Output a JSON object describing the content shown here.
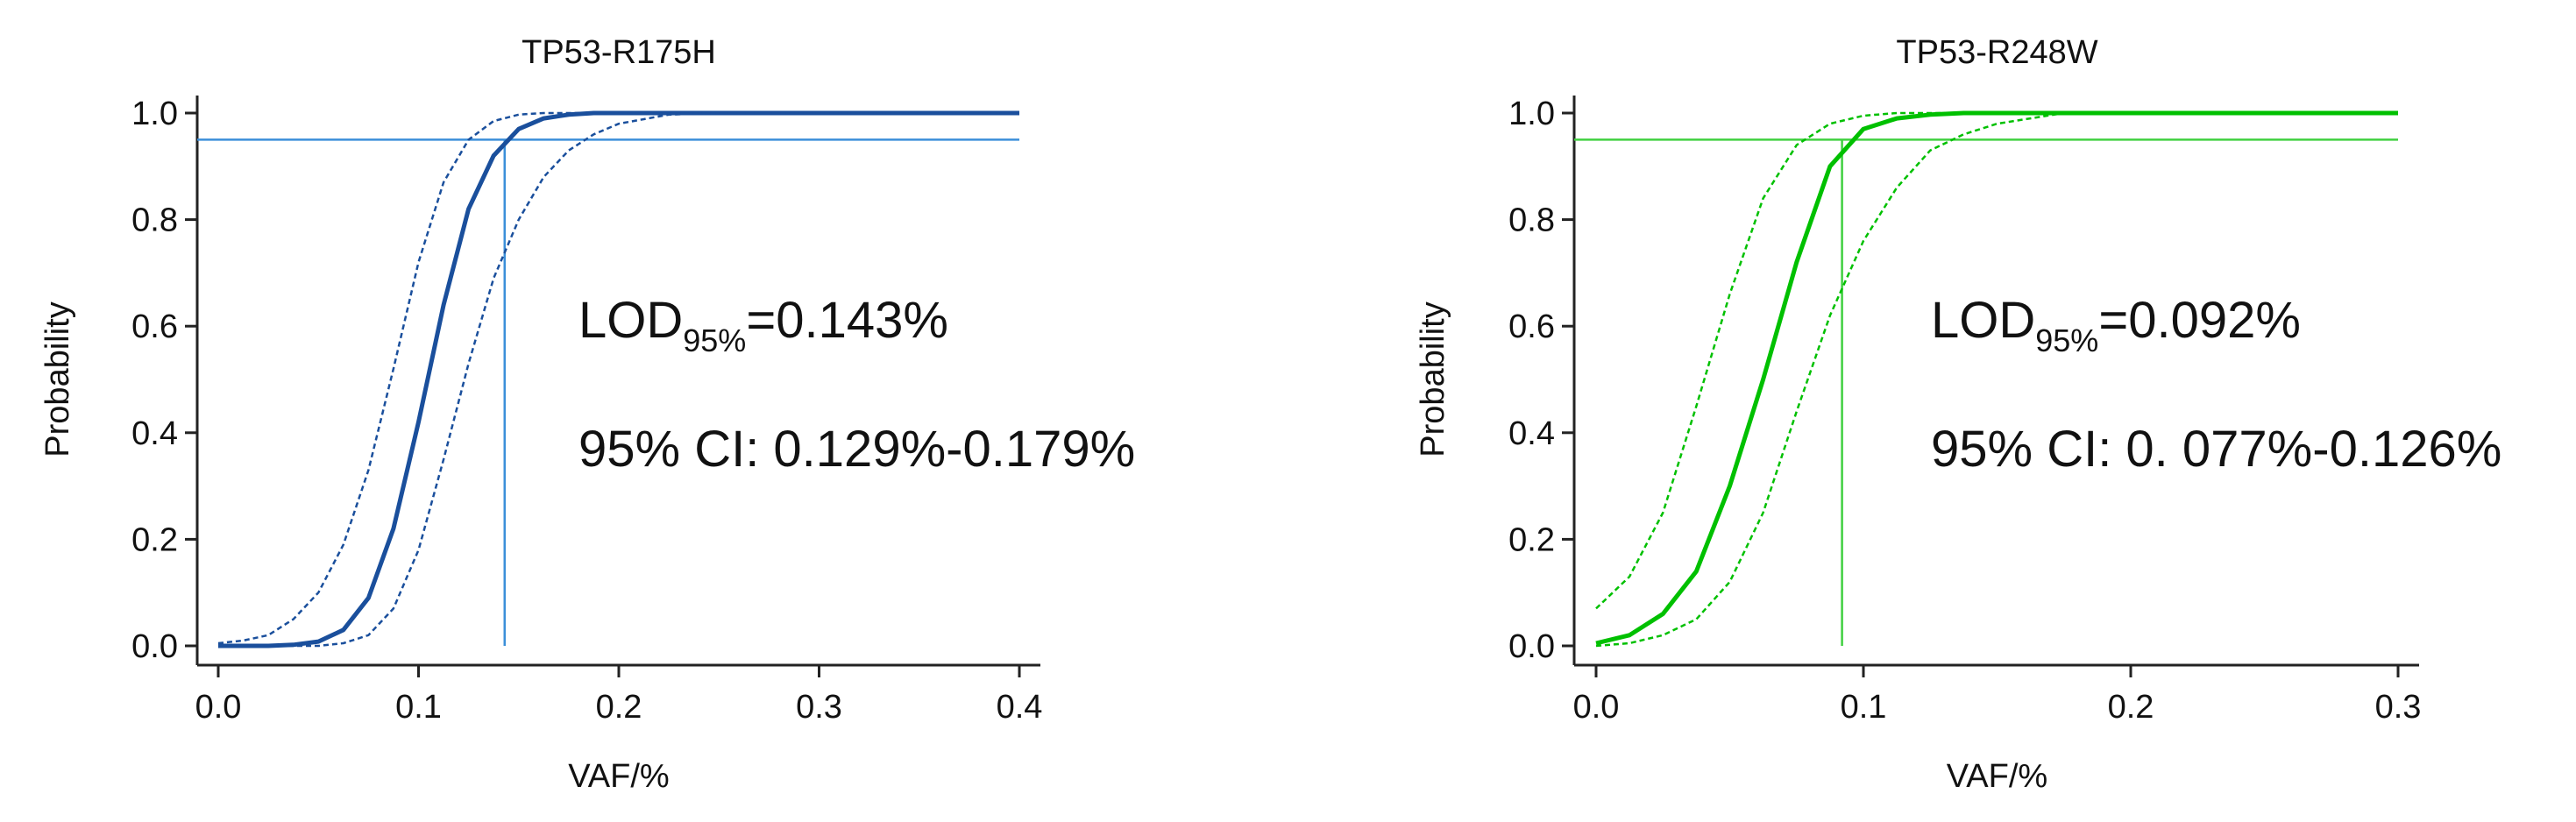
{
  "chart_data": [
    {
      "type": "line",
      "title": "TP53-R175H",
      "xlabel": "VAF/%",
      "ylabel": "Probability",
      "x": [
        0,
        0.0125,
        0.025,
        0.0375,
        0.05,
        0.0625,
        0.075,
        0.0875,
        0.1,
        0.1125,
        0.125,
        0.1375,
        0.15,
        0.1625,
        0.175,
        0.1875,
        0.2,
        0.225,
        0.25,
        0.3,
        0.35,
        0.4
      ],
      "series": [
        {
          "color": "#1a4f9c",
          "style": "solid",
          "values": [
            0,
            0,
            0,
            0.002,
            0.008,
            0.03,
            0.09,
            0.22,
            0.42,
            0.64,
            0.82,
            0.92,
            0.97,
            0.99,
            0.997,
            1,
            1,
            1,
            1,
            1,
            1,
            1
          ]
        },
        {
          "color": "#1a4f9c",
          "style": "dashed",
          "values": [
            0.005,
            0.01,
            0.02,
            0.05,
            0.1,
            0.19,
            0.33,
            0.52,
            0.72,
            0.87,
            0.95,
            0.985,
            0.997,
            1,
            1,
            1,
            1,
            1,
            1,
            1,
            1,
            1
          ]
        },
        {
          "color": "#1a4f9c",
          "style": "dashed",
          "values": [
            0,
            0,
            0,
            0,
            0,
            0.005,
            0.02,
            0.07,
            0.18,
            0.35,
            0.53,
            0.69,
            0.8,
            0.88,
            0.93,
            0.96,
            0.98,
            0.997,
            1,
            1,
            1,
            1
          ]
        }
      ],
      "hline": 0.95,
      "vline": 0.143,
      "ref_color": "#3b8fd9",
      "lod_label": {
        "main": "LOD",
        "sub": "95%",
        "rest": "=0.143%"
      },
      "ci_label": "95% CI: 0.129%-0.179%",
      "xlim": [
        0,
        0.4
      ],
      "ylim": [
        0,
        1
      ],
      "xticks": [
        {
          "value": 0,
          "label": "0.0"
        },
        0.1,
        0.2,
        0.3,
        0.4
      ],
      "yticks": [
        {
          "value": 0,
          "label": "0.0"
        },
        0.2,
        0.4,
        0.6,
        0.8,
        {
          "value": 1,
          "label": "1.0"
        }
      ]
    },
    {
      "type": "line",
      "title": "TP53-R248W",
      "xlabel": "VAF/%",
      "ylabel": "Probability",
      "x": [
        0,
        0.0125,
        0.025,
        0.0375,
        0.05,
        0.0625,
        0.075,
        0.0875,
        0.1,
        0.1125,
        0.125,
        0.1375,
        0.15,
        0.1625,
        0.175,
        0.2,
        0.25,
        0.3
      ],
      "series": [
        {
          "color": "#00c000",
          "style": "solid",
          "values": [
            0.005,
            0.02,
            0.06,
            0.14,
            0.3,
            0.5,
            0.72,
            0.9,
            0.97,
            0.99,
            0.997,
            1,
            1,
            1,
            1,
            1,
            1,
            1
          ]
        },
        {
          "color": "#00c000",
          "style": "dashed",
          "values": [
            0.07,
            0.13,
            0.25,
            0.45,
            0.66,
            0.84,
            0.94,
            0.98,
            0.995,
            1,
            1,
            1,
            1,
            1,
            1,
            1,
            1,
            1
          ]
        },
        {
          "color": "#00c000",
          "style": "dashed",
          "values": [
            0,
            0.005,
            0.02,
            0.05,
            0.12,
            0.25,
            0.44,
            0.62,
            0.76,
            0.86,
            0.93,
            0.96,
            0.98,
            0.99,
            1,
            1,
            1,
            1
          ]
        }
      ],
      "hline": 0.95,
      "vline": 0.092,
      "ref_color": "#40d040",
      "lod_label": {
        "main": "LOD",
        "sub": "95%",
        "rest": "=0.092%"
      },
      "ci_label": "95% CI: 0. 077%-0.126%",
      "xlim": [
        0,
        0.3
      ],
      "ylim": [
        0,
        1
      ],
      "xticks": [
        {
          "value": 0,
          "label": "0.0"
        },
        0.1,
        0.2,
        0.3
      ],
      "yticks": [
        {
          "value": 0,
          "label": "0.0"
        },
        0.2,
        0.4,
        0.6,
        0.8,
        {
          "value": 1,
          "label": "1.0"
        }
      ]
    }
  ]
}
